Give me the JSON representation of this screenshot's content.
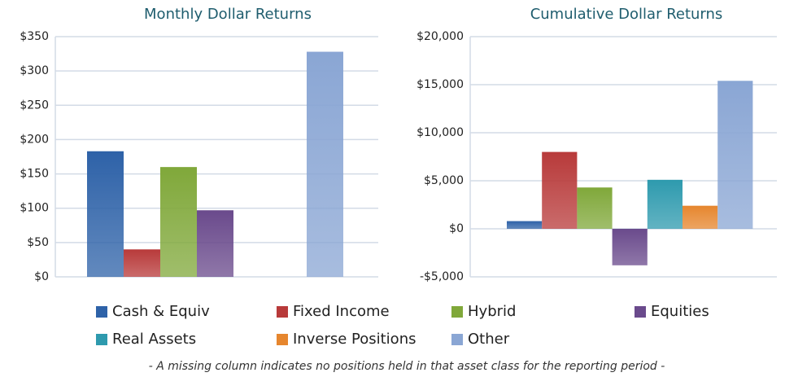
{
  "chart_data": [
    {
      "type": "bar",
      "title": "Monthly Dollar Returns",
      "categories": [
        "Cash & Equiv",
        "Fixed Income",
        "Hybrid",
        "Equities",
        "Real Assets",
        "Inverse Positions",
        "Other"
      ],
      "values": [
        183,
        40,
        160,
        97,
        null,
        null,
        328
      ],
      "colors": [
        "#2e62a8",
        "#b83a3a",
        "#80a83a",
        "#6a4a8c",
        "#2e9aae",
        "#e6862e",
        "#8aa6d4"
      ],
      "ylim": [
        0,
        350
      ],
      "yticks": [
        {
          "value": 0,
          "label": "$0"
        },
        {
          "value": 50,
          "label": "$50"
        },
        {
          "value": 100,
          "label": "$100"
        },
        {
          "value": 150,
          "label": "$150"
        },
        {
          "value": 200,
          "label": "$200"
        },
        {
          "value": 250,
          "label": "$250"
        },
        {
          "value": 300,
          "label": "$300"
        },
        {
          "value": 350,
          "label": "$350"
        }
      ],
      "grid": true
    },
    {
      "type": "bar",
      "title": "Cumulative Dollar Returns",
      "categories": [
        "Cash & Equiv",
        "Fixed Income",
        "Hybrid",
        "Equities",
        "Real Assets",
        "Inverse Positions",
        "Other"
      ],
      "values": [
        800,
        8000,
        4300,
        -3800,
        5100,
        2400,
        15400
      ],
      "colors": [
        "#2e62a8",
        "#b83a3a",
        "#80a83a",
        "#6a4a8c",
        "#2e9aae",
        "#e6862e",
        "#8aa6d4"
      ],
      "ylim": [
        -5000,
        20000
      ],
      "yticks": [
        {
          "value": -5000,
          "label": "-$5,000"
        },
        {
          "value": 0,
          "label": "$0"
        },
        {
          "value": 5000,
          "label": "$5,000"
        },
        {
          "value": 10000,
          "label": "$10,000"
        },
        {
          "value": 15000,
          "label": "$15,000"
        },
        {
          "value": 20000,
          "label": "$20,000"
        }
      ],
      "grid": true
    }
  ],
  "footnote": "- A missing column indicates no positions held in that asset class for the reporting period -"
}
